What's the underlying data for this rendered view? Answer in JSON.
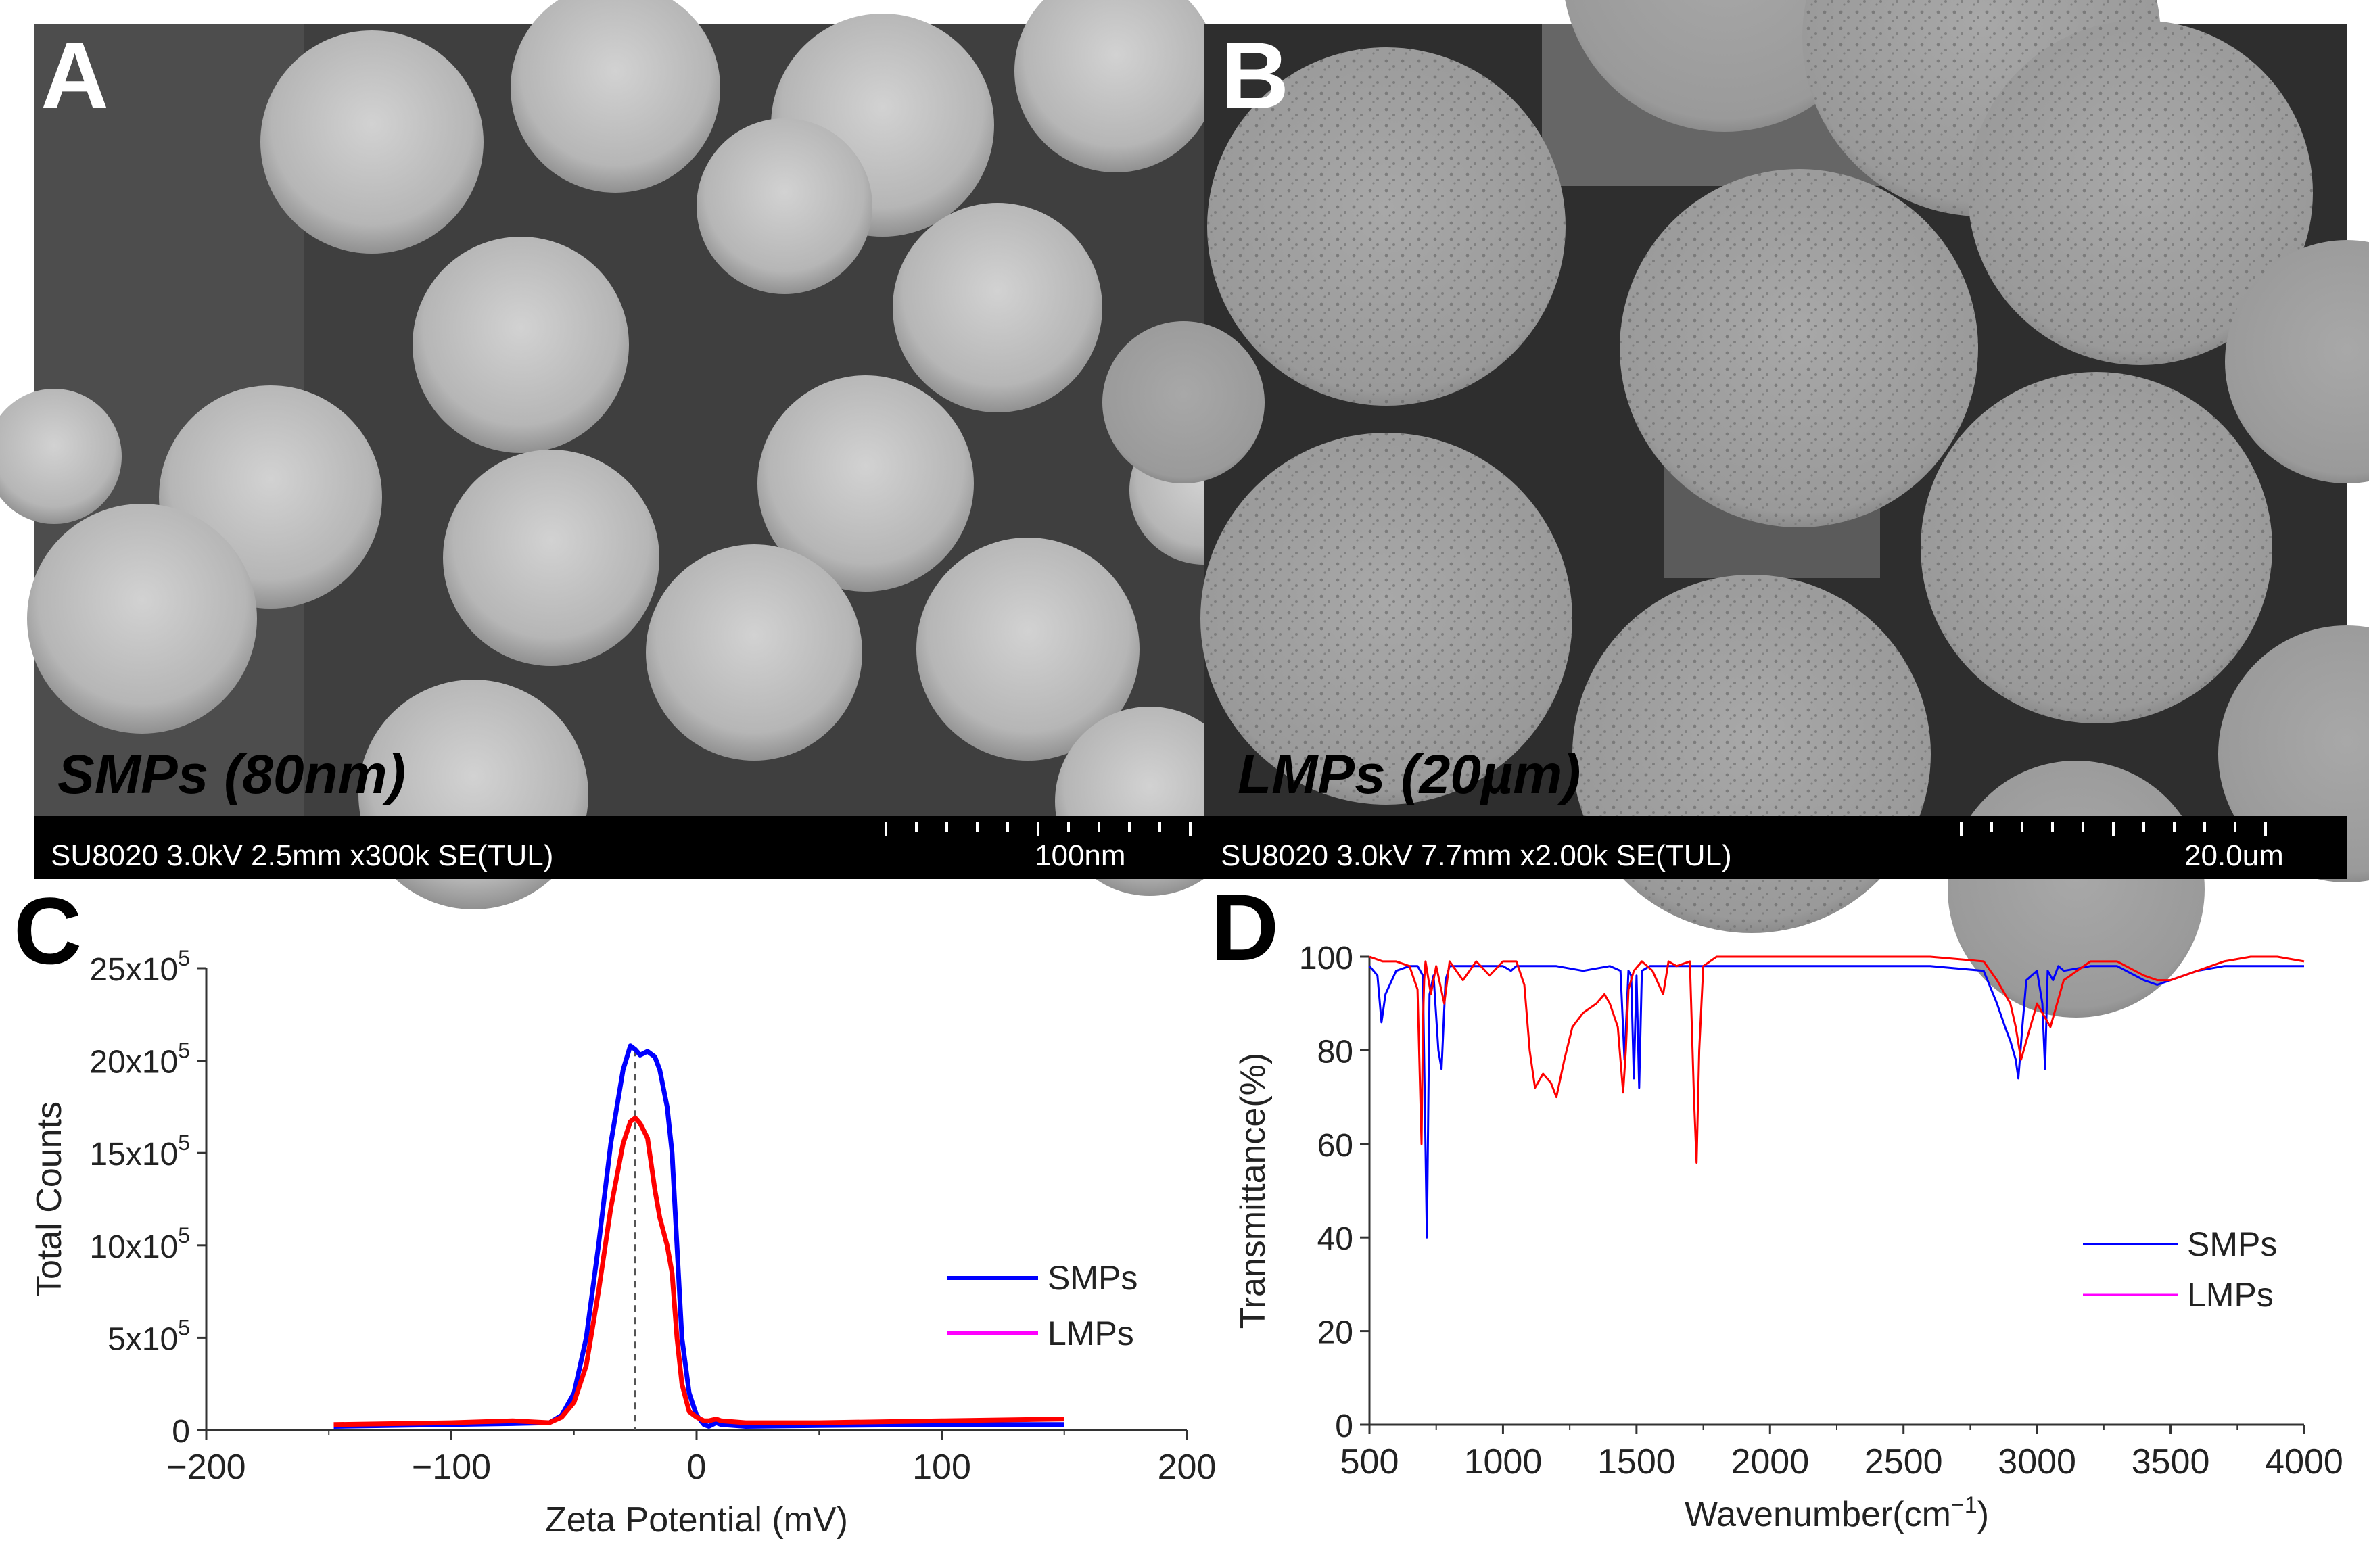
{
  "figure": {
    "panels": [
      {
        "letter": "A",
        "kind": "sem-micrograph",
        "label": "SMPs (80nm)",
        "info": "SU8020 3.0kV 2.5mm x300k SE(TUL)",
        "scale_label": "100nm"
      },
      {
        "letter": "B",
        "kind": "sem-micrograph",
        "label": "LMPs (20µm)",
        "info": "SU8020 3.0kV 7.7mm x2.00k SE(TUL)",
        "scale_label": "20.0um"
      },
      {
        "letter": "C"
      },
      {
        "letter": "D"
      }
    ]
  },
  "chart_data": [
    {
      "panel": "C",
      "type": "line",
      "xlabel": "Zeta Potential (mV)",
      "ylabel": "Total Counts",
      "xlim": [
        -200,
        200
      ],
      "ylim": [
        0,
        25
      ],
      "x_ticks": [
        -200,
        -100,
        0,
        100,
        200
      ],
      "x_tick_labels": [
        "−200",
        "−100",
        "0",
        "100",
        "200"
      ],
      "y_ticks": [
        0,
        5,
        10,
        15,
        20,
        25
      ],
      "y_tick_labels": [
        {
          "base": "0",
          "exp": ""
        },
        {
          "base": "5x10",
          "exp": "5"
        },
        {
          "base": "10x10",
          "exp": "5"
        },
        {
          "base": "15x10",
          "exp": "5"
        },
        {
          "base": "20x10",
          "exp": "5"
        },
        {
          "base": "25x10",
          "exp": "5"
        }
      ],
      "y_unit_note": "values in units of 10^5 counts",
      "reference_line_x": -25,
      "legend_position": "right",
      "grid": false,
      "series": [
        {
          "name": "SMPs",
          "color": "#0000ff",
          "legend_color": "#0000ff",
          "x": [
            -148,
            -100,
            -75,
            -60,
            -55,
            -50,
            -45,
            -40,
            -35,
            -30,
            -27,
            -25,
            -23,
            -20,
            -17,
            -15,
            -12,
            -10,
            -8,
            -6,
            -3,
            0,
            3,
            5,
            8,
            10,
            20,
            50,
            100,
            150
          ],
          "y": [
            0.2,
            0.3,
            0.35,
            0.4,
            0.8,
            2.0,
            5.0,
            10.0,
            15.5,
            19.5,
            20.8,
            20.6,
            20.3,
            20.5,
            20.2,
            19.5,
            17.5,
            15.0,
            10.0,
            5.0,
            2.0,
            0.8,
            0.3,
            0.2,
            0.4,
            0.3,
            0.2,
            0.25,
            0.3,
            0.3
          ]
        },
        {
          "name": "LMPs",
          "color": "#ff0000",
          "legend_color": "#ff00ff",
          "x": [
            -148,
            -100,
            -75,
            -60,
            -55,
            -50,
            -45,
            -40,
            -35,
            -30,
            -27,
            -25,
            -23,
            -20,
            -17,
            -15,
            -12,
            -10,
            -8,
            -6,
            -3,
            0,
            3,
            5,
            8,
            10,
            20,
            50,
            100,
            150
          ],
          "y": [
            0.3,
            0.4,
            0.5,
            0.4,
            0.7,
            1.5,
            3.5,
            7.5,
            12.0,
            15.5,
            16.7,
            16.9,
            16.6,
            15.8,
            13.0,
            11.5,
            10.0,
            8.5,
            5.0,
            2.5,
            1.0,
            0.7,
            0.5,
            0.5,
            0.6,
            0.5,
            0.4,
            0.4,
            0.5,
            0.6
          ]
        }
      ]
    },
    {
      "panel": "D",
      "type": "line",
      "xlabel_base": "Wavenumber(cm",
      "xlabel_exp": "−1",
      "xlabel_tail": ")",
      "ylabel": "Transmittance(%)",
      "xlim": [
        500,
        4000
      ],
      "ylim": [
        0,
        100
      ],
      "x_ticks": [
        500,
        1000,
        1500,
        2000,
        2500,
        3000,
        3500,
        4000
      ],
      "x_tick_labels": [
        "500",
        "1000",
        "1500",
        "2000",
        "2500",
        "3000",
        "3500",
        "4000"
      ],
      "y_ticks": [
        0,
        20,
        40,
        60,
        80,
        100
      ],
      "y_tick_labels": [
        "0",
        "20",
        "40",
        "60",
        "80",
        "100"
      ],
      "legend_position": "right",
      "grid": false,
      "series": [
        {
          "name": "SMPs",
          "color": "#0000ff",
          "legend_color": "#0000ff",
          "x": [
            500,
            530,
            545,
            560,
            600,
            650,
            680,
            700,
            715,
            725,
            740,
            758,
            770,
            785,
            800,
            850,
            900,
            1000,
            1030,
            1050,
            1100,
            1150,
            1200,
            1300,
            1400,
            1440,
            1455,
            1470,
            1480,
            1490,
            1495,
            1500,
            1510,
            1520,
            1550,
            1600,
            1700,
            1800,
            2000,
            2300,
            2600,
            2800,
            2850,
            2880,
            2900,
            2920,
            2930,
            2945,
            2960,
            3000,
            3020,
            3030,
            3040,
            3060,
            3080,
            3100,
            3200,
            3300,
            3400,
            3450,
            3500,
            3600,
            3700,
            3800,
            3900,
            4000
          ],
          "y": [
            98,
            96,
            86,
            92,
            97,
            98,
            98,
            96,
            40,
            92,
            96,
            80,
            76,
            95,
            98,
            98,
            98,
            98,
            97,
            98,
            98,
            98,
            98,
            97,
            98,
            97,
            78,
            97,
            96,
            74,
            85,
            96,
            72,
            97,
            98,
            98,
            98,
            98,
            98,
            98,
            98,
            97,
            90,
            85,
            82,
            78,
            74,
            85,
            95,
            97,
            90,
            76,
            97,
            95,
            98,
            97,
            98,
            98,
            95,
            94,
            95,
            97,
            98,
            98,
            98,
            98
          ]
        },
        {
          "name": "LMPs",
          "color": "#ff0000",
          "legend_color": "#ff00ff",
          "x": [
            500,
            550,
            600,
            650,
            680,
            695,
            700,
            705,
            710,
            730,
            750,
            780,
            800,
            850,
            900,
            950,
            1000,
            1050,
            1080,
            1100,
            1120,
            1150,
            1180,
            1200,
            1230,
            1260,
            1300,
            1350,
            1380,
            1400,
            1430,
            1450,
            1460,
            1470,
            1490,
            1520,
            1560,
            1600,
            1620,
            1650,
            1700,
            1715,
            1725,
            1735,
            1750,
            1800,
            2000,
            2300,
            2600,
            2800,
            2850,
            2900,
            2920,
            2940,
            2960,
            3000,
            3050,
            3100,
            3200,
            3300,
            3400,
            3450,
            3500,
            3600,
            3700,
            3800,
            3900,
            4000
          ],
          "y": [
            100,
            99,
            99,
            98,
            93,
            60,
            85,
            95,
            99,
            92,
            98,
            90,
            99,
            95,
            99,
            96,
            99,
            99,
            94,
            80,
            72,
            75,
            73,
            70,
            78,
            85,
            88,
            90,
            92,
            90,
            85,
            71,
            80,
            93,
            97,
            99,
            97,
            92,
            99,
            98,
            99,
            70,
            56,
            80,
            98,
            100,
            100,
            100,
            100,
            99,
            95,
            90,
            85,
            78,
            82,
            90,
            85,
            95,
            99,
            99,
            96,
            95,
            95,
            97,
            99,
            100,
            100,
            99
          ]
        }
      ]
    }
  ]
}
